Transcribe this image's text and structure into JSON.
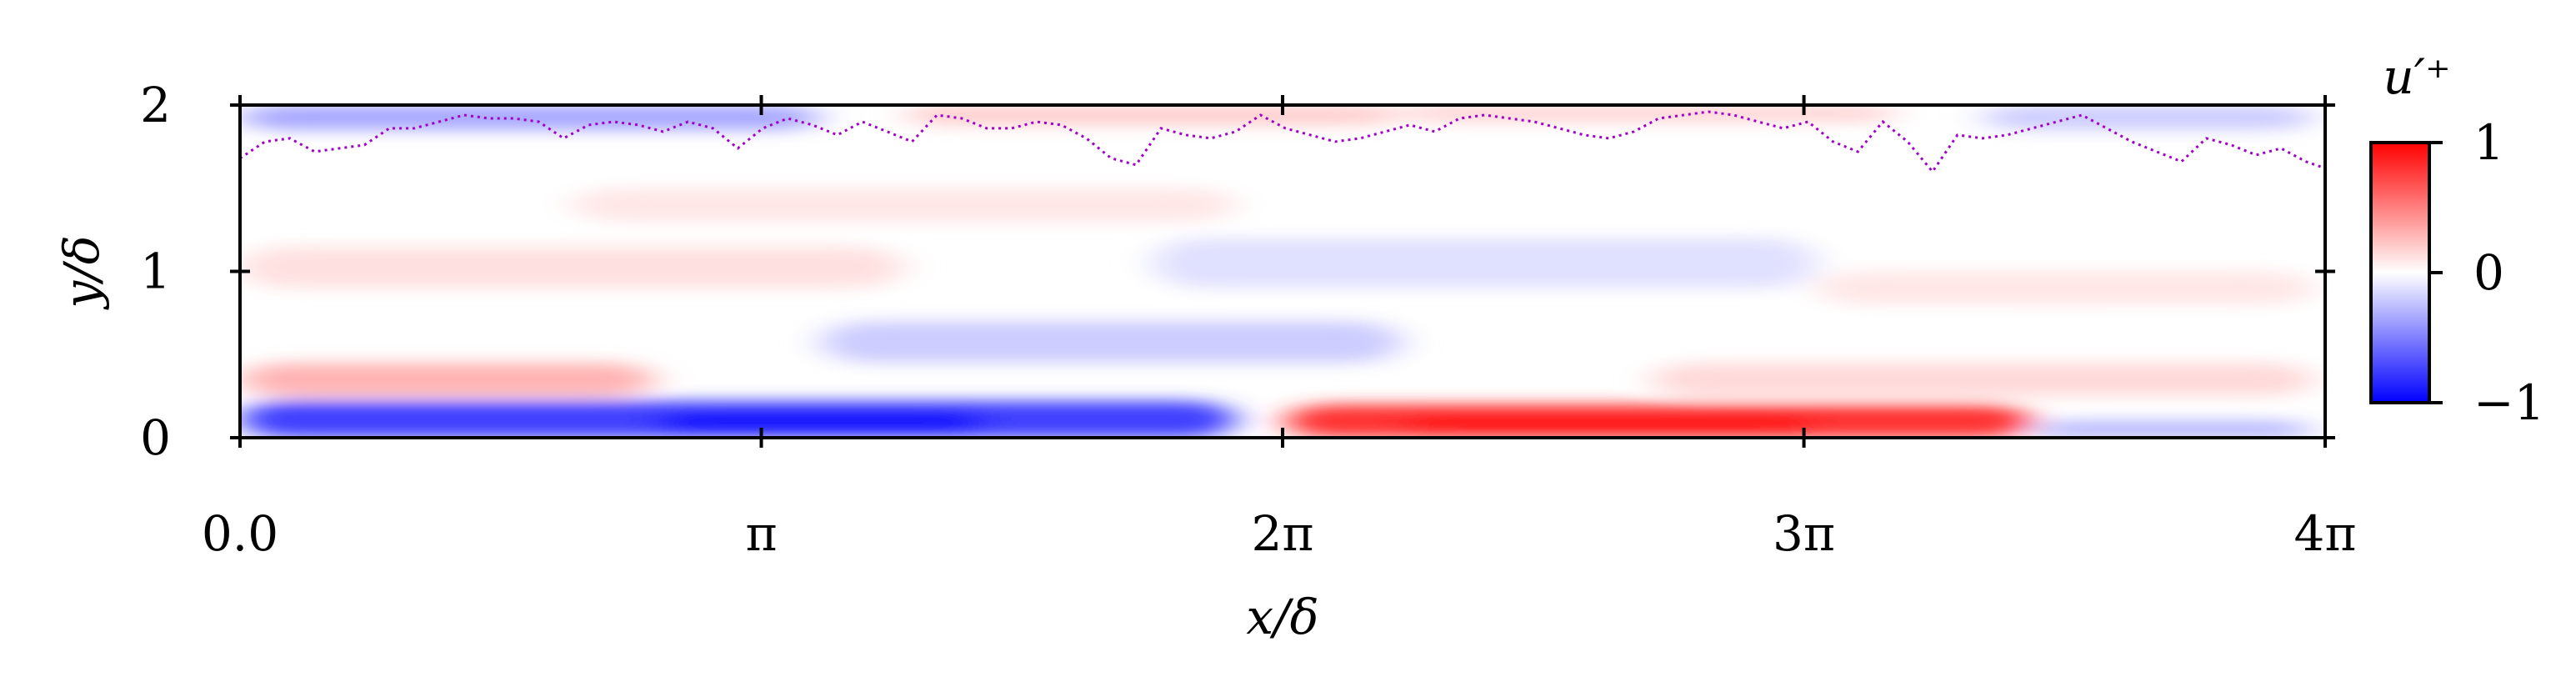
{
  "chart_data": {
    "type": "heatmap",
    "title": "",
    "xlabel": "x/δ",
    "ylabel": "y/δ",
    "xlim": [
      0,
      12.566
    ],
    "ylim": [
      0,
      2
    ],
    "x_ticks": [
      {
        "value": 0,
        "label": "0.0"
      },
      {
        "value": 3.1416,
        "label": "π"
      },
      {
        "value": 6.2832,
        "label": "2π"
      },
      {
        "value": 9.4248,
        "label": "3π"
      },
      {
        "value": 12.566,
        "label": "4π"
      }
    ],
    "y_ticks": [
      {
        "value": 0,
        "label": "0"
      },
      {
        "value": 1,
        "label": "1"
      },
      {
        "value": 2,
        "label": "2"
      }
    ],
    "colorbar": {
      "title": "u′⁺",
      "colormap": "bwr",
      "range": [
        -1,
        1
      ],
      "ticks": [
        {
          "value": 1,
          "label": "1"
        },
        {
          "value": 0,
          "label": "0"
        },
        {
          "value": -1,
          "label": "−1"
        }
      ],
      "colors": {
        "low": "#0000ff",
        "mid": "#ffffff",
        "high": "#ff0000"
      }
    },
    "field_regions": [
      {
        "x": [
          0.0,
          6.0
        ],
        "y": [
          0.0,
          0.22
        ],
        "value": -0.75
      },
      {
        "x": [
          2.5,
          4.5
        ],
        "y": [
          0.03,
          0.16
        ],
        "value": -0.95
      },
      {
        "x": [
          6.3,
          10.8
        ],
        "y": [
          0.0,
          0.2
        ],
        "value": 0.8
      },
      {
        "x": [
          7.0,
          9.5
        ],
        "y": [
          0.03,
          0.13
        ],
        "value": 0.97
      },
      {
        "x": [
          10.8,
          12.5
        ],
        "y": [
          0.0,
          0.1
        ],
        "value": -0.3
      },
      {
        "x": [
          0.0,
          2.5
        ],
        "y": [
          0.25,
          0.45
        ],
        "value": 0.3
      },
      {
        "x": [
          3.5,
          7.0
        ],
        "y": [
          0.45,
          0.7
        ],
        "value": -0.2
      },
      {
        "x": [
          8.5,
          12.5
        ],
        "y": [
          0.25,
          0.45
        ],
        "value": 0.15
      },
      {
        "x": [
          0.0,
          4.0
        ],
        "y": [
          0.9,
          1.15
        ],
        "value": 0.12
      },
      {
        "x": [
          5.5,
          9.5
        ],
        "y": [
          0.9,
          1.2
        ],
        "value": -0.12
      },
      {
        "x": [
          9.5,
          12.5
        ],
        "y": [
          0.8,
          1.0
        ],
        "value": 0.1
      },
      {
        "x": [
          2.0,
          6.0
        ],
        "y": [
          1.3,
          1.5
        ],
        "value": 0.1
      },
      {
        "x": [
          0.0,
          3.5
        ],
        "y": [
          1.85,
          2.0
        ],
        "value": -0.35
      },
      {
        "x": [
          4.0,
          7.0
        ],
        "y": [
          1.88,
          2.0
        ],
        "value": 0.2
      },
      {
        "x": [
          7.0,
          10.0
        ],
        "y": [
          1.9,
          2.0
        ],
        "value": 0.18
      },
      {
        "x": [
          10.5,
          12.5
        ],
        "y": [
          1.85,
          2.0
        ],
        "value": -0.2
      }
    ],
    "interface_line": {
      "name": "",
      "color": "#a000c8",
      "style": "dotted",
      "x": [
        0.0,
        0.15,
        0.3,
        0.45,
        0.6,
        0.75,
        0.9,
        1.05,
        1.2,
        1.35,
        1.5,
        1.65,
        1.8,
        1.95,
        2.1,
        2.25,
        2.4,
        2.55,
        2.7,
        2.85,
        3.0,
        3.15,
        3.3,
        3.45,
        3.6,
        3.75,
        3.9,
        4.05,
        4.2,
        4.35,
        4.5,
        4.65,
        4.8,
        4.95,
        5.1,
        5.25,
        5.4,
        5.55,
        5.7,
        5.85,
        6.0,
        6.15,
        6.3,
        6.45,
        6.6,
        6.75,
        6.9,
        7.05,
        7.2,
        7.35,
        7.5,
        7.65,
        7.8,
        7.95,
        8.1,
        8.25,
        8.4,
        8.55,
        8.7,
        8.85,
        9.0,
        9.15,
        9.3,
        9.45,
        9.6,
        9.75,
        9.9,
        10.05,
        10.2,
        10.35,
        10.5,
        10.65,
        10.8,
        10.95,
        11.1,
        11.25,
        11.4,
        11.55,
        11.7,
        11.85,
        12.0,
        12.15,
        12.3,
        12.45,
        12.566
      ],
      "y": [
        1.68,
        1.78,
        1.8,
        1.72,
        1.74,
        1.76,
        1.86,
        1.86,
        1.9,
        1.94,
        1.92,
        1.92,
        1.9,
        1.8,
        1.88,
        1.9,
        1.88,
        1.84,
        1.9,
        1.86,
        1.74,
        1.86,
        1.92,
        1.88,
        1.82,
        1.9,
        1.84,
        1.78,
        1.94,
        1.92,
        1.86,
        1.86,
        1.9,
        1.88,
        1.8,
        1.68,
        1.64,
        1.86,
        1.82,
        1.8,
        1.84,
        1.94,
        1.86,
        1.82,
        1.78,
        1.8,
        1.84,
        1.88,
        1.84,
        1.92,
        1.94,
        1.92,
        1.9,
        1.86,
        1.82,
        1.8,
        1.84,
        1.92,
        1.94,
        1.96,
        1.94,
        1.9,
        1.86,
        1.9,
        1.78,
        1.72,
        1.9,
        1.78,
        1.6,
        1.82,
        1.8,
        1.82,
        1.86,
        1.9,
        1.94,
        1.86,
        1.78,
        1.72,
        1.66,
        1.8,
        1.76,
        1.7,
        1.74,
        1.66,
        1.62
      ]
    }
  }
}
